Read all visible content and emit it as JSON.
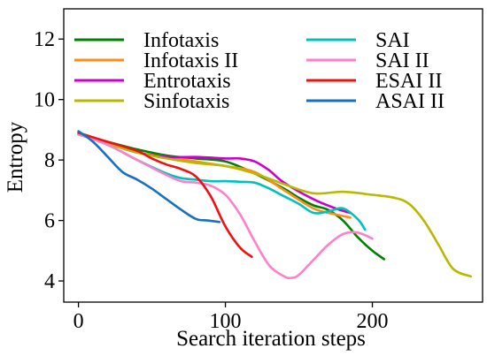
{
  "chart_data": {
    "type": "line",
    "title": "",
    "xlabel": "Search iteration steps",
    "ylabel": "Entropy",
    "xlim": [
      -10,
      275
    ],
    "ylim": [
      3.3,
      13.0
    ],
    "xticks": [
      0,
      100,
      200
    ],
    "yticks": [
      4,
      6,
      8,
      10,
      12
    ],
    "grid": false,
    "legend_position": "top",
    "series": [
      {
        "name": "Infotaxis",
        "color": "#008000",
        "x": [
          0,
          20,
          40,
          60,
          80,
          100,
          120,
          140,
          150,
          160,
          170,
          180,
          190,
          200,
          208
        ],
        "y": [
          8.85,
          8.6,
          8.35,
          8.15,
          8.05,
          7.95,
          7.55,
          7.05,
          6.75,
          6.5,
          6.35,
          6.0,
          5.45,
          5.0,
          4.72
        ]
      },
      {
        "name": "Infotaxis II",
        "color": "#ff8c1a",
        "x": [
          0,
          20,
          40,
          60,
          80,
          100,
          120,
          140,
          160,
          175,
          185
        ],
        "y": [
          8.85,
          8.55,
          8.25,
          8.1,
          7.95,
          7.8,
          7.6,
          7.0,
          6.4,
          6.2,
          6.1
        ]
      },
      {
        "name": "Entrotaxis",
        "color": "#cc00cc",
        "x": [
          0,
          20,
          40,
          60,
          80,
          100,
          110,
          120,
          130,
          140,
          160,
          175,
          185
        ],
        "y": [
          8.85,
          8.55,
          8.25,
          8.1,
          8.1,
          8.05,
          8.05,
          7.95,
          7.65,
          7.25,
          6.7,
          6.4,
          6.25
        ]
      },
      {
        "name": "Sinfotaxis",
        "color": "#b8b800",
        "x": [
          0,
          20,
          40,
          60,
          80,
          100,
          120,
          140,
          160,
          180,
          200,
          215,
          225,
          235,
          245,
          255,
          267
        ],
        "y": [
          8.85,
          8.55,
          8.25,
          8.05,
          7.9,
          7.8,
          7.55,
          7.2,
          6.9,
          6.95,
          6.85,
          6.75,
          6.55,
          6.0,
          5.2,
          4.4,
          4.15
        ]
      },
      {
        "name": "SAI",
        "color": "#00c0c0",
        "x": [
          0,
          20,
          40,
          60,
          70,
          80,
          90,
          100,
          110,
          120,
          130,
          140,
          150,
          160,
          170,
          180,
          190,
          195
        ],
        "y": [
          8.85,
          8.5,
          8.0,
          7.55,
          7.4,
          7.35,
          7.3,
          7.3,
          7.28,
          7.25,
          7.05,
          6.8,
          6.55,
          6.25,
          6.3,
          6.4,
          6.05,
          5.7
        ]
      },
      {
        "name": "SAI II",
        "color": "#ff7fc8",
        "x": [
          0,
          20,
          40,
          60,
          70,
          80,
          90,
          100,
          110,
          120,
          130,
          140,
          145,
          150,
          160,
          170,
          180,
          190,
          200
        ],
        "y": [
          8.85,
          8.5,
          8.0,
          7.5,
          7.3,
          7.25,
          7.15,
          6.85,
          6.2,
          5.3,
          4.5,
          4.15,
          4.1,
          4.2,
          4.7,
          5.2,
          5.55,
          5.6,
          5.4
        ]
      },
      {
        "name": "ESAI II",
        "color": "#ee1111",
        "x": [
          0,
          20,
          40,
          50,
          60,
          70,
          80,
          90,
          100,
          110,
          118
        ],
        "y": [
          8.9,
          8.6,
          8.3,
          8.05,
          7.85,
          7.7,
          7.45,
          6.8,
          5.8,
          5.1,
          4.8
        ]
      },
      {
        "name": "ASAI II",
        "color": "#1a70c0",
        "x": [
          0,
          10,
          20,
          30,
          40,
          50,
          60,
          70,
          80,
          88,
          96
        ],
        "y": [
          8.95,
          8.6,
          8.1,
          7.6,
          7.35,
          7.05,
          6.7,
          6.35,
          6.05,
          6.0,
          5.95
        ]
      }
    ]
  }
}
